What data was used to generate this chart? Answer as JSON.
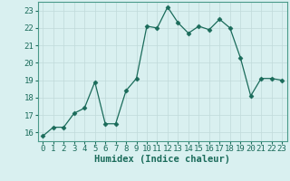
{
  "x": [
    0,
    1,
    2,
    3,
    4,
    5,
    6,
    7,
    8,
    9,
    10,
    11,
    12,
    13,
    14,
    15,
    16,
    17,
    18,
    19,
    20,
    21,
    22,
    23
  ],
  "y": [
    15.8,
    16.3,
    16.3,
    17.1,
    17.4,
    18.9,
    16.5,
    16.5,
    18.4,
    19.1,
    22.1,
    22.0,
    23.2,
    22.3,
    21.7,
    22.1,
    21.9,
    22.5,
    22.0,
    20.3,
    18.1,
    19.1,
    19.1,
    19.0
  ],
  "line_color": "#1a6b5a",
  "marker": "D",
  "marker_size": 2.5,
  "bg_color": "#d9f0f0",
  "grid_color": "#c0dada",
  "xlabel": "Humidex (Indice chaleur)",
  "ylim": [
    15.5,
    23.5
  ],
  "xlim": [
    -0.5,
    23.5
  ],
  "yticks": [
    16,
    17,
    18,
    19,
    20,
    21,
    22,
    23
  ],
  "xticks": [
    0,
    1,
    2,
    3,
    4,
    5,
    6,
    7,
    8,
    9,
    10,
    11,
    12,
    13,
    14,
    15,
    16,
    17,
    18,
    19,
    20,
    21,
    22,
    23
  ],
  "tick_color": "#1a6b5a",
  "xlabel_fontsize": 7.5,
  "tick_fontsize": 6.5,
  "spine_color": "#4a9a8a"
}
